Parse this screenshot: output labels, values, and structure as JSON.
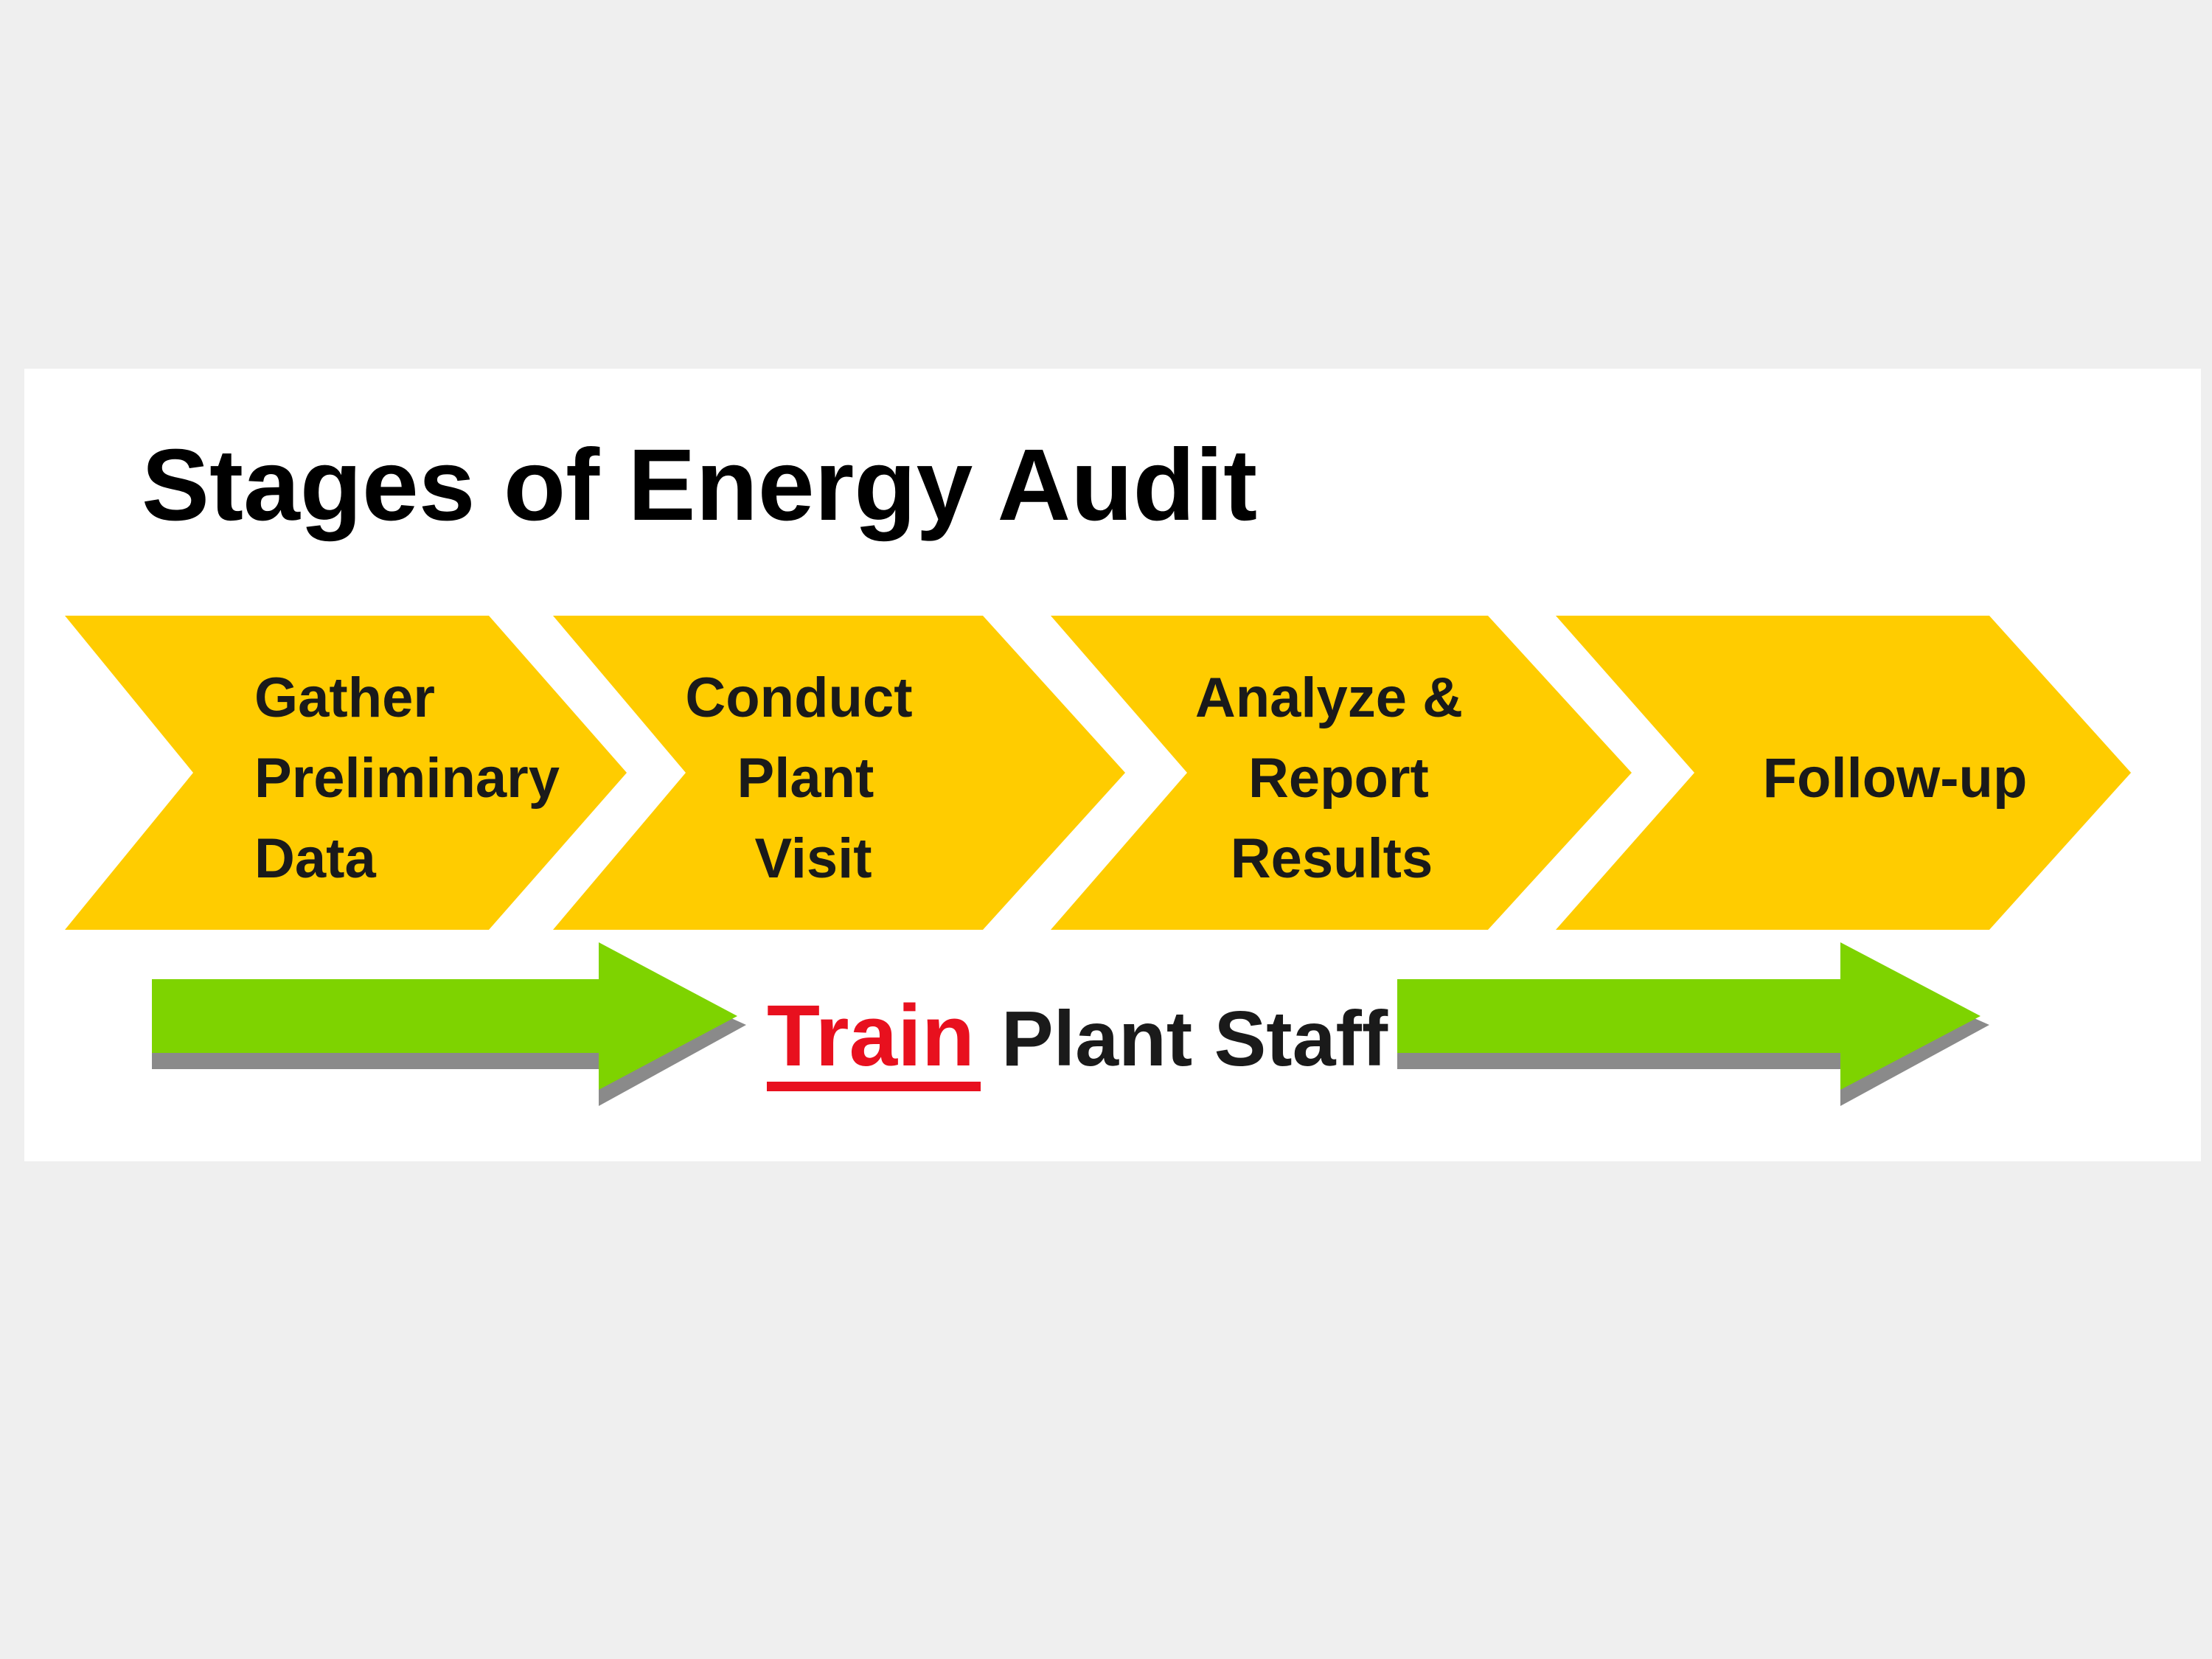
{
  "slide": {
    "title": "Stages of Energy Audit"
  },
  "stages": [
    {
      "lines": [
        "Gather",
        "Preliminary",
        "Data"
      ]
    },
    {
      "lines": [
        "Conduct",
        "Plant",
        "Visit"
      ]
    },
    {
      "lines": [
        "Analyze &",
        "Report",
        "Results"
      ]
    },
    {
      "lines": [
        "Follow-up"
      ]
    }
  ],
  "training": {
    "highlight": "Train",
    "rest": "Plant Staff"
  },
  "colors": {
    "background": "#efefef",
    "panel": "#ffffff",
    "chevron": "#ffcc00",
    "arrow": "#7ed300",
    "arrow_shadow": "#8a8a8a",
    "highlight": "#e8101e",
    "text": "#1a1a1a"
  }
}
